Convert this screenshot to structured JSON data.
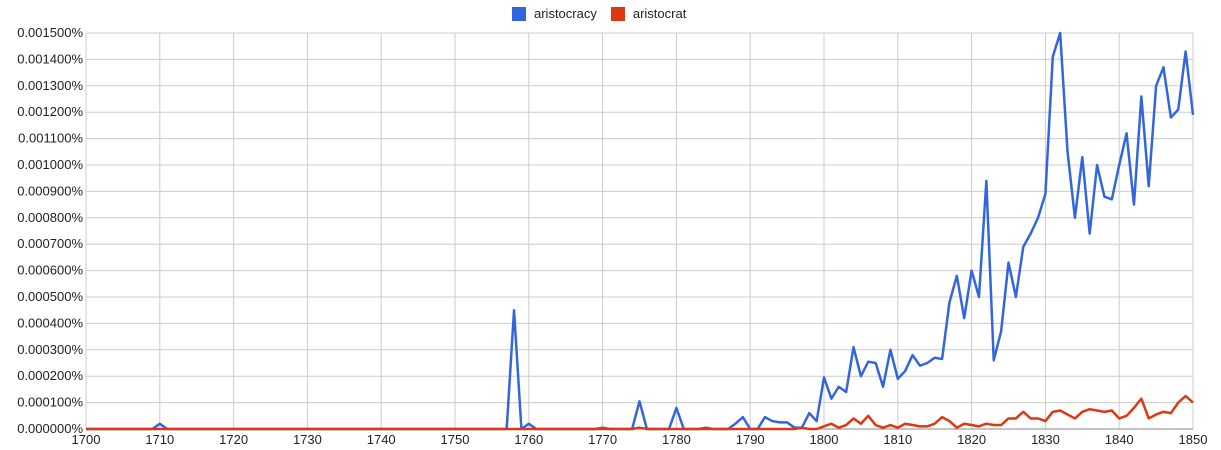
{
  "chart_data": {
    "type": "line",
    "title": "",
    "xlabel": "",
    "ylabel": "",
    "xlim": [
      1700,
      1850
    ],
    "ylim": [
      0,
      0.0015
    ],
    "grid": true,
    "legend_position": "top-center",
    "x_ticks": [
      1700,
      1710,
      1720,
      1730,
      1740,
      1750,
      1760,
      1770,
      1780,
      1790,
      1800,
      1810,
      1820,
      1830,
      1840,
      1850
    ],
    "x_tick_labels": [
      "1700",
      "1710",
      "1720",
      "1730",
      "1740",
      "1750",
      "1760",
      "1770",
      "1780",
      "1790",
      "1800",
      "1810",
      "1820",
      "1830",
      "1840",
      "1850"
    ],
    "y_ticks": [
      0,
      0.0001,
      0.0002,
      0.0003,
      0.0004,
      0.0005,
      0.0006,
      0.0007,
      0.0008,
      0.0009,
      0.001,
      0.0011,
      0.0012,
      0.0013,
      0.0014,
      0.0015
    ],
    "y_tick_labels": [
      "0.000000%",
      "0.000100%",
      "0.000200%",
      "0.000300%",
      "0.000400%",
      "0.000500%",
      "0.000600%",
      "0.000700%",
      "0.000800%",
      "0.000900%",
      "0.001000%",
      "0.001100%",
      "0.001200%",
      "0.001300%",
      "0.001400%",
      "0.001500%"
    ],
    "series": [
      {
        "name": "aristocracy",
        "color": "#3366dd",
        "points": [
          [
            1700,
            0
          ],
          [
            1709,
            0
          ],
          [
            1710,
            2e-05
          ],
          [
            1711,
            0
          ],
          [
            1757,
            0
          ],
          [
            1758,
            0.00045
          ],
          [
            1759,
            0
          ],
          [
            1760,
            2e-05
          ],
          [
            1761,
            0
          ],
          [
            1769,
            0
          ],
          [
            1770,
            5e-06
          ],
          [
            1771,
            0
          ],
          [
            1774,
            0
          ],
          [
            1775,
            0.000105
          ],
          [
            1776,
            0
          ],
          [
            1779,
            0
          ],
          [
            1780,
            8e-05
          ],
          [
            1781,
            0
          ],
          [
            1783,
            0
          ],
          [
            1784,
            5e-06
          ],
          [
            1785,
            0
          ],
          [
            1787,
            0
          ],
          [
            1788,
            2e-05
          ],
          [
            1789,
            4.5e-05
          ],
          [
            1790,
            0
          ],
          [
            1791,
            0
          ],
          [
            1792,
            4.5e-05
          ],
          [
            1793,
            3e-05
          ],
          [
            1794,
            2.5e-05
          ],
          [
            1795,
            2.5e-05
          ],
          [
            1796,
            5e-06
          ],
          [
            1797,
            5e-06
          ],
          [
            1798,
            6e-05
          ],
          [
            1799,
            3e-05
          ],
          [
            1800,
            0.000195
          ],
          [
            1801,
            0.000115
          ],
          [
            1802,
            0.00016
          ],
          [
            1803,
            0.00014
          ],
          [
            1804,
            0.00031
          ],
          [
            1805,
            0.0002
          ],
          [
            1806,
            0.000255
          ],
          [
            1807,
            0.00025
          ],
          [
            1808,
            0.00016
          ],
          [
            1809,
            0.0003
          ],
          [
            1810,
            0.00019
          ],
          [
            1811,
            0.00022
          ],
          [
            1812,
            0.00028
          ],
          [
            1813,
            0.00024
          ],
          [
            1814,
            0.00025
          ],
          [
            1815,
            0.00027
          ],
          [
            1816,
            0.000265
          ],
          [
            1817,
            0.00048
          ],
          [
            1818,
            0.00058
          ],
          [
            1819,
            0.00042
          ],
          [
            1820,
            0.0006
          ],
          [
            1821,
            0.0005
          ],
          [
            1822,
            0.00094
          ],
          [
            1823,
            0.00026
          ],
          [
            1824,
            0.00037
          ],
          [
            1825,
            0.00063
          ],
          [
            1826,
            0.0005
          ],
          [
            1827,
            0.00069
          ],
          [
            1828,
            0.00074
          ],
          [
            1829,
            0.0008
          ],
          [
            1830,
            0.00089
          ],
          [
            1831,
            0.00141
          ],
          [
            1832,
            0.0015
          ],
          [
            1833,
            0.00105
          ],
          [
            1834,
            0.0008
          ],
          [
            1835,
            0.00103
          ],
          [
            1836,
            0.00074
          ],
          [
            1837,
            0.001
          ],
          [
            1838,
            0.00088
          ],
          [
            1839,
            0.00087
          ],
          [
            1840,
            0.001
          ],
          [
            1841,
            0.00112
          ],
          [
            1842,
            0.00085
          ],
          [
            1843,
            0.00126
          ],
          [
            1844,
            0.00092
          ],
          [
            1845,
            0.0013
          ],
          [
            1846,
            0.00137
          ],
          [
            1847,
            0.00118
          ],
          [
            1848,
            0.00121
          ],
          [
            1849,
            0.00143
          ],
          [
            1850,
            0.00119
          ]
        ]
      },
      {
        "name": "aristocrat",
        "color": "#dc3912",
        "points": [
          [
            1700,
            0
          ],
          [
            1774,
            0
          ],
          [
            1775,
            5e-06
          ],
          [
            1776,
            0
          ],
          [
            1796,
            0
          ],
          [
            1797,
            5e-06
          ],
          [
            1798,
            0
          ],
          [
            1799,
            0
          ],
          [
            1800,
            1e-05
          ],
          [
            1801,
            2e-05
          ],
          [
            1802,
            5e-06
          ],
          [
            1803,
            1.5e-05
          ],
          [
            1804,
            4e-05
          ],
          [
            1805,
            2e-05
          ],
          [
            1806,
            5e-05
          ],
          [
            1807,
            1.5e-05
          ],
          [
            1808,
            5e-06
          ],
          [
            1809,
            1.5e-05
          ],
          [
            1810,
            5e-06
          ],
          [
            1811,
            2e-05
          ],
          [
            1812,
            1.5e-05
          ],
          [
            1813,
            1e-05
          ],
          [
            1814,
            1e-05
          ],
          [
            1815,
            2e-05
          ],
          [
            1816,
            4.5e-05
          ],
          [
            1817,
            3e-05
          ],
          [
            1818,
            5e-06
          ],
          [
            1819,
            2e-05
          ],
          [
            1820,
            1.5e-05
          ],
          [
            1821,
            1e-05
          ],
          [
            1822,
            2e-05
          ],
          [
            1823,
            1.5e-05
          ],
          [
            1824,
            1.5e-05
          ],
          [
            1825,
            4e-05
          ],
          [
            1826,
            4e-05
          ],
          [
            1827,
            6.5e-05
          ],
          [
            1828,
            4e-05
          ],
          [
            1829,
            4e-05
          ],
          [
            1830,
            3e-05
          ],
          [
            1831,
            6.5e-05
          ],
          [
            1832,
            7e-05
          ],
          [
            1833,
            5.5e-05
          ],
          [
            1834,
            4e-05
          ],
          [
            1835,
            6.5e-05
          ],
          [
            1836,
            7.5e-05
          ],
          [
            1837,
            7e-05
          ],
          [
            1838,
            6.5e-05
          ],
          [
            1839,
            7e-05
          ],
          [
            1840,
            4e-05
          ],
          [
            1841,
            5e-05
          ],
          [
            1842,
            8e-05
          ],
          [
            1843,
            0.000115
          ],
          [
            1844,
            4e-05
          ],
          [
            1845,
            5.5e-05
          ],
          [
            1846,
            6.5e-05
          ],
          [
            1847,
            6e-05
          ],
          [
            1848,
            0.0001
          ],
          [
            1849,
            0.000125
          ],
          [
            1850,
            0.0001
          ]
        ]
      }
    ]
  }
}
